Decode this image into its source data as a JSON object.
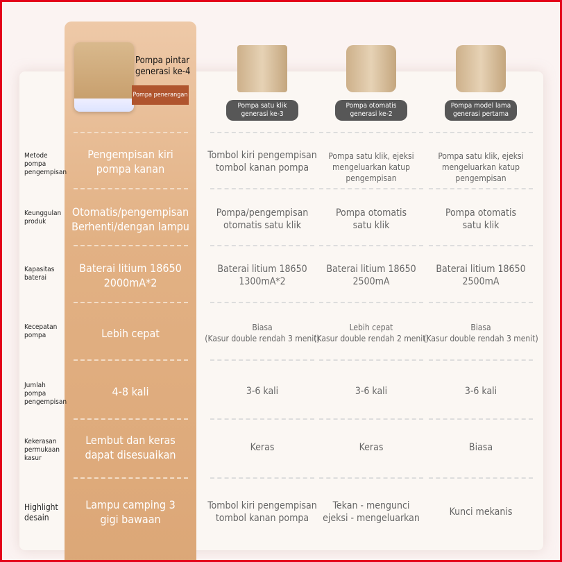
{
  "header": {
    "featured": {
      "name": [
        "Pompa pintar",
        "generasi ke-4"
      ],
      "badge": "Pompa penerangan"
    },
    "products": [
      {
        "badge": [
          "Pompa satu klik",
          "generasi ke-3"
        ]
      },
      {
        "badge": [
          "Pompa otomatis",
          "generasi ke-2"
        ]
      },
      {
        "badge": [
          "Pompa model lama",
          "generasi pertama"
        ]
      }
    ]
  },
  "rows": [
    {
      "label": [
        "Metode pompa",
        "pengempisan"
      ],
      "cells": [
        [
          "Pengempisan kiri",
          "pompa kanan"
        ],
        [
          "Tombol kiri pengempisan",
          "tombol kanan pompa"
        ],
        [
          "Pompa satu klik, ejeksi",
          "mengeluarkan katup pengempisan"
        ],
        [
          "Pompa satu klik, ejeksi",
          "mengeluarkan katup pengempisan"
        ]
      ]
    },
    {
      "label": [
        "Keunggulan",
        "produk"
      ],
      "cells": [
        [
          "Otomatis/pengempisan",
          "Berhenti/dengan lampu"
        ],
        [
          "Pompa/pengempisan",
          "otomatis satu klik"
        ],
        [
          "Pompa otomatis",
          "satu klik"
        ],
        [
          "Pompa otomatis",
          "satu klik"
        ]
      ]
    },
    {
      "label": [
        "Kapasitas",
        "baterai"
      ],
      "cells": [
        [
          "Baterai litium 18650",
          "2000mA*2"
        ],
        [
          "Baterai litium 18650",
          "1300mA*2"
        ],
        [
          "Baterai litium 18650",
          "2500mA"
        ],
        [
          "Baterai litium 18650",
          "2500mA"
        ]
      ]
    },
    {
      "label": [
        "Kecepatan",
        "pompa"
      ],
      "cells": [
        [
          "Lebih cepat"
        ],
        [
          "Biasa",
          "(Kasur double rendah 3 menit)"
        ],
        [
          "Lebih cepat",
          "(Kasur double rendah 2 menit)"
        ],
        [
          "Biasa",
          "(Kasur double rendah 3 menit)"
        ]
      ]
    },
    {
      "label": [
        "Jumlah pompa",
        "pengempisan"
      ],
      "cells": [
        [
          "4-8 kali"
        ],
        [
          "3-6 kali"
        ],
        [
          "3-6 kali"
        ],
        [
          "3-6 kali"
        ]
      ]
    },
    {
      "label": [
        "Kekerasan",
        "permukaan kasur"
      ],
      "cells": [
        [
          "Lembut dan keras",
          "dapat disesuaikan"
        ],
        [
          "Keras"
        ],
        [
          "Keras"
        ],
        [
          "Biasa"
        ]
      ]
    },
    {
      "label": [
        "Highlight",
        "desain"
      ],
      "cells": [
        [
          "Lampu camping 3",
          "gigi bawaan"
        ],
        [
          "Tombol kiri pengempisan",
          "tombol kanan pompa"
        ],
        [
          "Tekan - mengunci",
          "ejeksi - mengeluarkan"
        ],
        [
          "Kunci mekanis"
        ]
      ]
    }
  ]
}
